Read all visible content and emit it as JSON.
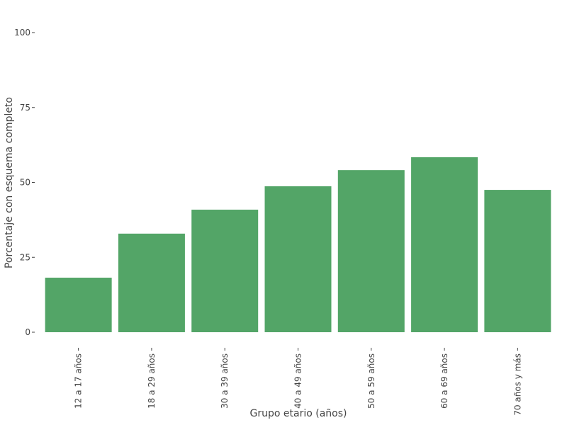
{
  "chart_data": {
    "type": "bar",
    "categories": [
      "12 a 17 años",
      "18 a 29 años",
      "30 a 39 años",
      "40 a 49 años",
      "50 a 59 años",
      "60 a 69 años",
      "70 años y más"
    ],
    "values": [
      18.2,
      32.9,
      40.9,
      48.7,
      54.1,
      58.4,
      47.5
    ],
    "color": "#53a567",
    "ylim": [
      0,
      100
    ],
    "yticks": [
      0,
      25,
      50,
      75,
      100
    ],
    "x_label": "Grupo etario (años)",
    "y_label": "Porcentaje con esquema completo"
  }
}
